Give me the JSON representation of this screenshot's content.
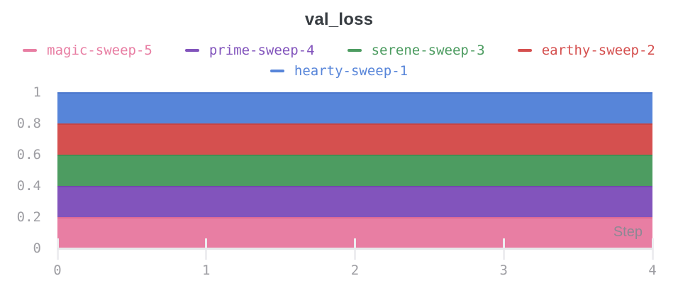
{
  "title": "val_loss",
  "axis": {
    "x_label": "Step"
  },
  "legend": {
    "items": [
      {
        "label": "magic-sweep-5",
        "color": "#e87ea3"
      },
      {
        "label": "prime-sweep-4",
        "color": "#8254bc"
      },
      {
        "label": "serene-sweep-3",
        "color": "#4d9c61"
      },
      {
        "label": "earthy-sweep-2",
        "color": "#d5504f"
      },
      {
        "label": "hearty-sweep-1",
        "color": "#5785d9"
      }
    ]
  },
  "chart_data": {
    "type": "area",
    "stacked": true,
    "title": "val_loss",
    "xlabel": "Step",
    "ylabel": "",
    "x": [
      0,
      1,
      2,
      3,
      4
    ],
    "xlim": [
      0,
      4
    ],
    "ylim": [
      0,
      1
    ],
    "grid": false,
    "legend_position": "top",
    "xticks": [
      0,
      1,
      2,
      3,
      4
    ],
    "xtick_labels": [
      "0",
      "1",
      "2",
      "3",
      "4"
    ],
    "yticks": [
      0,
      0.2,
      0.4,
      0.6,
      0.8,
      1
    ],
    "ytick_labels": [
      "0",
      "0.2",
      "0.4",
      "0.6",
      "0.8",
      "1"
    ],
    "series": [
      {
        "name": "magic-sweep-5",
        "fill_color": "#e87ea3",
        "line_color": "#df6c95",
        "values": [
          0.2,
          0.2,
          0.2,
          0.2,
          0.2
        ],
        "band": [
          0.0,
          0.2
        ]
      },
      {
        "name": "prime-sweep-4",
        "fill_color": "#8254bc",
        "line_color": "#7347ae",
        "values": [
          0.2,
          0.2,
          0.2,
          0.2,
          0.2
        ],
        "band": [
          0.2,
          0.4
        ]
      },
      {
        "name": "serene-sweep-3",
        "fill_color": "#4d9c61",
        "line_color": "#419055",
        "values": [
          0.2,
          0.2,
          0.2,
          0.2,
          0.2
        ],
        "band": [
          0.4,
          0.6
        ]
      },
      {
        "name": "earthy-sweep-2",
        "fill_color": "#d5504f",
        "line_color": "#c74443",
        "values": [
          0.2,
          0.2,
          0.2,
          0.2,
          0.2
        ],
        "band": [
          0.6,
          0.8
        ]
      },
      {
        "name": "hearty-sweep-1",
        "fill_color": "#5785d9",
        "line_color": "#4a77cd",
        "values": [
          0.2,
          0.2,
          0.2,
          0.2,
          0.2
        ],
        "band": [
          0.8,
          1.0
        ]
      }
    ]
  }
}
